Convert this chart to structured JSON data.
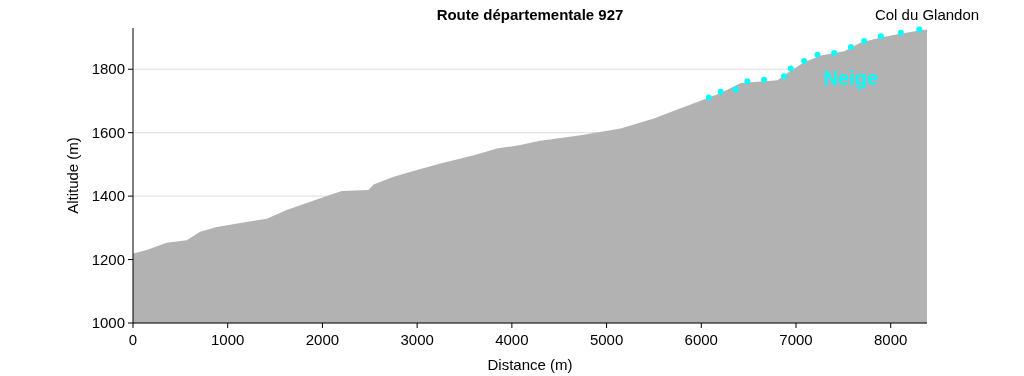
{
  "chart_data": {
    "type": "area",
    "title": "Route départementale 927",
    "xlabel": "Distance (m)",
    "ylabel": "Altitude (m)",
    "xlim": [
      0,
      8383
    ],
    "ylim": [
      1000,
      1930
    ],
    "xticks": [
      0,
      1000,
      2000,
      3000,
      4000,
      5000,
      6000,
      7000,
      8000
    ],
    "yticks": [
      1000,
      1200,
      1400,
      1600,
      1800
    ],
    "grid": "y",
    "series": [
      {
        "color": "#b2b2b2",
        "x": [
          0,
          144,
          356,
          567,
          708,
          885,
          1165,
          1412,
          1623,
          1871,
          2047,
          2205,
          2487,
          2540,
          2752,
          2998,
          3245,
          3386,
          3598,
          3844,
          4091,
          4284,
          4725,
          5148,
          5500,
          5747,
          5958,
          6205,
          6416,
          6804,
          6945,
          7086,
          7262,
          7509,
          7685,
          7896,
          8072,
          8301,
          8383
        ],
        "values": [
          1219,
          1230,
          1253,
          1261,
          1288,
          1303,
          1317,
          1329,
          1356,
          1382,
          1400,
          1416,
          1419,
          1437,
          1461,
          1482,
          1503,
          1513,
          1529,
          1550,
          1561,
          1574,
          1592,
          1613,
          1645,
          1673,
          1697,
          1725,
          1757,
          1765,
          1795,
          1822,
          1843,
          1857,
          1884,
          1900,
          1910,
          1922,
          1925
        ]
      },
      {
        "type": "scatter",
        "name": "Neige",
        "color": "#00ffff",
        "marker": "circle",
        "x": [
          6080,
          6205,
          6364,
          6487,
          6663,
          6874,
          6945,
          7086,
          7227,
          7403,
          7579,
          7720,
          7896,
          8107,
          8301
        ],
        "values": [
          1711,
          1729,
          1736,
          1762,
          1767,
          1778,
          1802,
          1826,
          1846,
          1851,
          1870,
          1889,
          1904,
          1915,
          1925
        ]
      }
    ],
    "annotations": [
      {
        "text": "Col du Glandon",
        "x": 8383,
        "y": 1925
      }
    ]
  }
}
